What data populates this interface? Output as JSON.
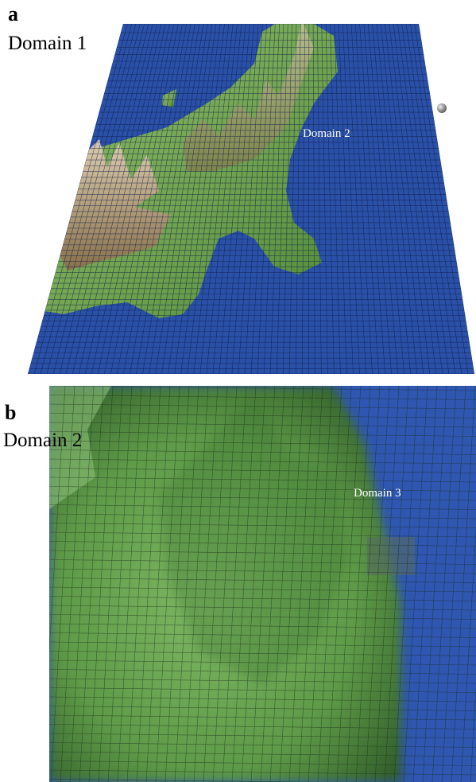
{
  "panels": [
    {
      "letter": "a",
      "title": "Domain 1",
      "annotation": "Domain 2"
    },
    {
      "letter": "b",
      "title": "Domain 2",
      "annotation": "Domain 3"
    }
  ]
}
